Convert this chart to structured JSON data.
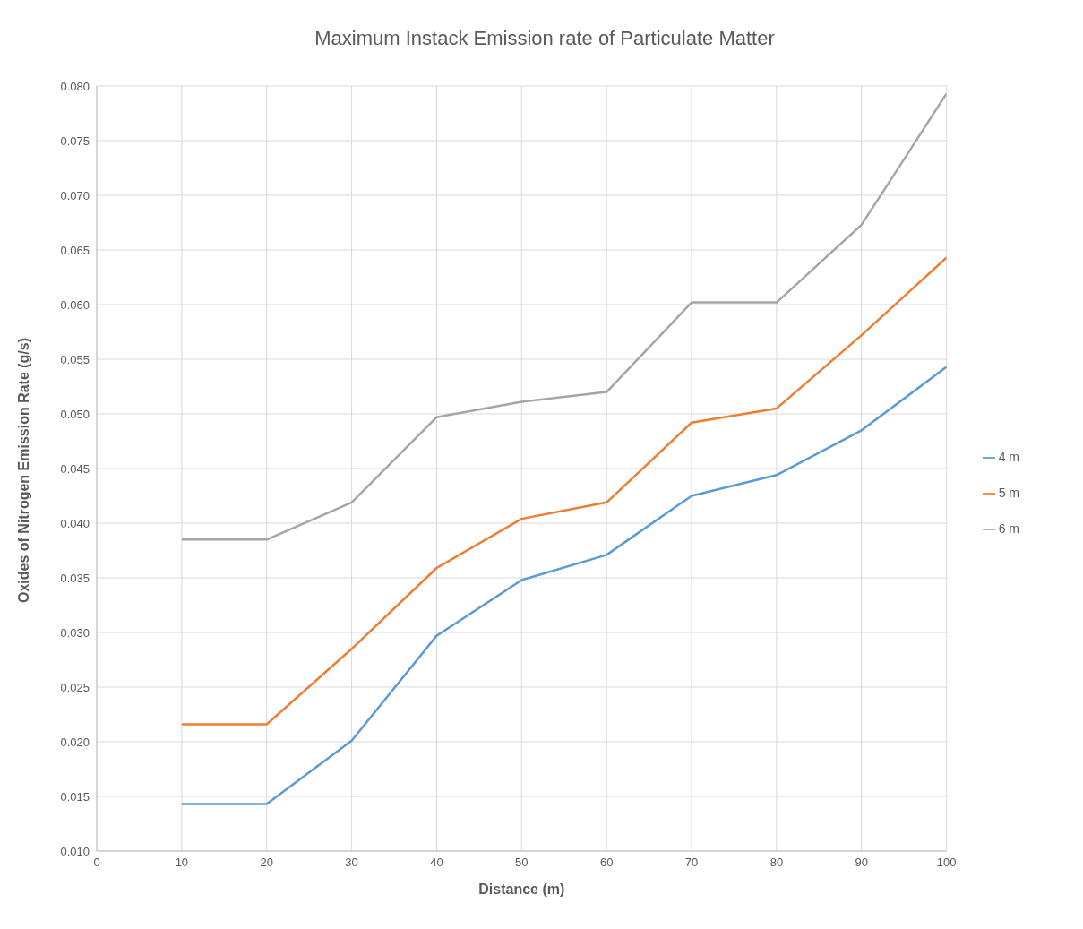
{
  "chart_data": {
    "type": "line",
    "title": "Maximum Instack Emission rate of Particulate Matter",
    "xlabel": "Distance (m)",
    "ylabel": "Oxides of Nitrogen Emission Rate (g/s)",
    "x": [
      10,
      20,
      30,
      40,
      50,
      60,
      70,
      80,
      90,
      100
    ],
    "xlim": [
      0,
      100
    ],
    "xticks": [
      0,
      10,
      20,
      30,
      40,
      50,
      60,
      70,
      80,
      90,
      100
    ],
    "ylim": [
      0.01,
      0.08
    ],
    "yticks": [
      {
        "value": 0.01,
        "label": "0.010"
      },
      {
        "value": 0.015,
        "label": "0.015"
      },
      {
        "value": 0.02,
        "label": "0.020"
      },
      {
        "value": 0.025,
        "label": "0.025"
      },
      {
        "value": 0.03,
        "label": "0.030"
      },
      {
        "value": 0.035,
        "label": "0.035"
      },
      {
        "value": 0.04,
        "label": "0.040"
      },
      {
        "value": 0.045,
        "label": "0.045"
      },
      {
        "value": 0.05,
        "label": "0.050"
      },
      {
        "value": 0.055,
        "label": "0.055"
      },
      {
        "value": 0.06,
        "label": "0.060"
      },
      {
        "value": 0.065,
        "label": "0.065"
      },
      {
        "value": 0.07,
        "label": "0.070"
      },
      {
        "value": 0.075,
        "label": "0.075"
      },
      {
        "value": 0.08,
        "label": "0.080"
      }
    ],
    "grid": true,
    "legend": "right",
    "marker": "none",
    "line_style": "solid",
    "series": [
      {
        "name": "4 m",
        "color": "#5b9bd5",
        "values": [
          0.0143,
          0.0143,
          0.0201,
          0.0297,
          0.0348,
          0.0371,
          0.0425,
          0.0444,
          0.0485,
          0.0543
        ]
      },
      {
        "name": "5 m",
        "color": "#ed7d31",
        "values": [
          0.0216,
          0.0216,
          0.0285,
          0.0359,
          0.0404,
          0.0419,
          0.0492,
          0.0505,
          0.0572,
          0.0643
        ]
      },
      {
        "name": "6 m",
        "color": "#a5a5a5",
        "values": [
          0.0385,
          0.0385,
          0.0419,
          0.0497,
          0.0511,
          0.052,
          0.0602,
          0.0602,
          0.0673,
          0.0793
        ]
      }
    ]
  }
}
